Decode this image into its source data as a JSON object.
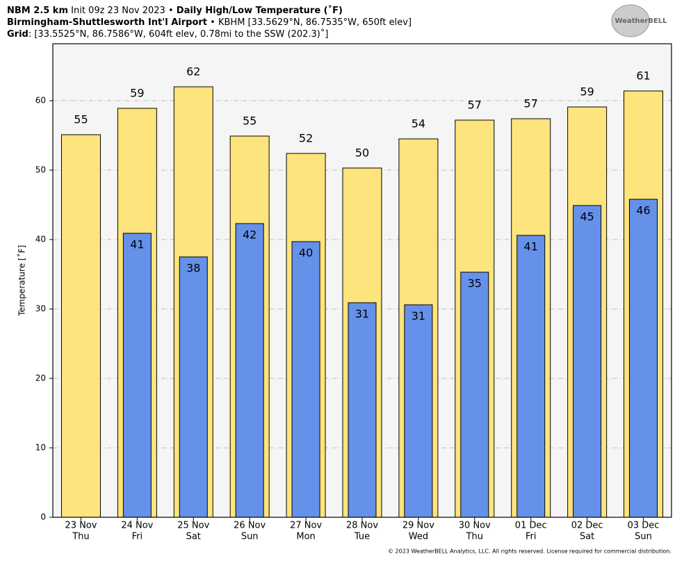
{
  "header": {
    "line1": [
      "NBM 2.5 km",
      "Init 09z 23 Nov 2023",
      "•",
      "Daily High/Low Temperature (˚F)"
    ],
    "line2": [
      "Birmingham-Shuttlesworth Int'l Airport",
      "•",
      "KBHM [33.5629°N, 86.7535°W, 650ft elev]"
    ],
    "line3": [
      "Grid",
      ": [33.5525°N, 86.7586°W, 604ft elev, 0.78mi to the SSW (202.3)˚]"
    ],
    "logo": "WeatherBELL"
  },
  "footer": "© 2023 WeatherBELL Analytics, LLC. All rights reserved. License required for commercial distribution.",
  "chart_data": {
    "type": "bar",
    "y_label": "Temperature [˚F]",
    "categories": [
      "23 Nov",
      "24 Nov",
      "25 Nov",
      "26 Nov",
      "27 Nov",
      "28 Nov",
      "29 Nov",
      "30 Nov",
      "01 Dec",
      "02 Dec",
      "03 Dec"
    ],
    "weekdays": [
      "Thu",
      "Fri",
      "Sat",
      "Sun",
      "Mon",
      "Tue",
      "Wed",
      "Thu",
      "Fri",
      "Sat",
      "Sun"
    ],
    "series": [
      {
        "name": "High",
        "color": "#fee47c",
        "values": [
          55.1,
          58.9,
          62.0,
          54.9,
          52.4,
          50.3,
          54.5,
          57.2,
          57.4,
          59.1,
          61.4
        ],
        "value_labels": [
          "55",
          "59",
          "62",
          "55",
          "52",
          "50",
          "54",
          "57",
          "57",
          "59",
          "61"
        ]
      },
      {
        "name": "Low",
        "color": "#6591ea",
        "values": [
          null,
          40.9,
          37.5,
          42.3,
          39.7,
          30.9,
          30.6,
          35.3,
          40.6,
          44.9,
          45.8
        ],
        "value_labels": [
          null,
          "41",
          "38",
          "42",
          "40",
          "31",
          "31",
          "35",
          "41",
          "45",
          "46"
        ]
      }
    ],
    "ylim": [
      0,
      68.2
    ],
    "yticks": [
      0,
      10,
      20,
      30,
      40,
      50,
      60
    ],
    "grid": true
  }
}
